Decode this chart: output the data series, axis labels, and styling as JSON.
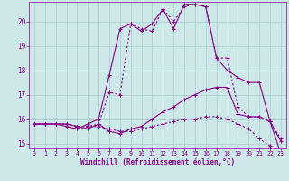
{
  "background_color": "#cce8e8",
  "line_color": "#880088",
  "grid_color": "#aacccc",
  "xlabel": "Windchill (Refroidissement éolien,°C)",
  "xlim": [
    -0.5,
    23.5
  ],
  "ylim": [
    14.8,
    20.8
  ],
  "yticks": [
    15,
    16,
    17,
    18,
    19,
    20
  ],
  "xticks": [
    0,
    1,
    2,
    3,
    4,
    5,
    6,
    7,
    8,
    9,
    10,
    11,
    12,
    13,
    14,
    15,
    16,
    17,
    18,
    19,
    20,
    21,
    22,
    23
  ],
  "series1_x": [
    0,
    1,
    2,
    3,
    4,
    5,
    6,
    7,
    8,
    9,
    10,
    11,
    12,
    13,
    14,
    15,
    16,
    17,
    18,
    19,
    20,
    21,
    22,
    23
  ],
  "series1_y": [
    15.8,
    15.8,
    15.8,
    15.7,
    15.6,
    15.8,
    16.0,
    17.8,
    19.7,
    19.9,
    19.6,
    19.9,
    20.5,
    19.7,
    20.7,
    20.7,
    20.6,
    18.5,
    18.0,
    17.7,
    17.5,
    17.5,
    15.9,
    15.1
  ],
  "series2_x": [
    0,
    1,
    2,
    3,
    4,
    5,
    6,
    7,
    8,
    9,
    10,
    11,
    12,
    13,
    14,
    15,
    16,
    17,
    18,
    19,
    20,
    21,
    22,
    23
  ],
  "series2_y": [
    15.8,
    15.8,
    15.8,
    15.8,
    15.7,
    15.7,
    15.8,
    17.1,
    17.0,
    19.9,
    19.7,
    19.6,
    20.5,
    20.0,
    20.6,
    20.7,
    20.6,
    18.5,
    18.5,
    16.5,
    16.1,
    16.1,
    15.9,
    15.2
  ],
  "series3_x": [
    0,
    1,
    2,
    3,
    4,
    5,
    6,
    7,
    8,
    9,
    10,
    11,
    12,
    13,
    14,
    15,
    16,
    17,
    18,
    19,
    20,
    21,
    22,
    23
  ],
  "series3_y": [
    15.8,
    15.8,
    15.8,
    15.8,
    15.7,
    15.6,
    15.8,
    15.5,
    15.4,
    15.6,
    15.7,
    16.0,
    16.3,
    16.5,
    16.8,
    17.0,
    17.2,
    17.3,
    17.3,
    16.2,
    16.1,
    16.1,
    15.9,
    14.6
  ],
  "series4_x": [
    0,
    1,
    2,
    3,
    4,
    5,
    6,
    7,
    8,
    9,
    10,
    11,
    12,
    13,
    14,
    15,
    16,
    17,
    18,
    19,
    20,
    21,
    22,
    23
  ],
  "series4_y": [
    15.8,
    15.8,
    15.8,
    15.8,
    15.7,
    15.7,
    15.7,
    15.6,
    15.5,
    15.5,
    15.6,
    15.7,
    15.8,
    15.9,
    16.0,
    16.0,
    16.1,
    16.1,
    16.0,
    15.8,
    15.6,
    15.2,
    14.9,
    14.5
  ]
}
